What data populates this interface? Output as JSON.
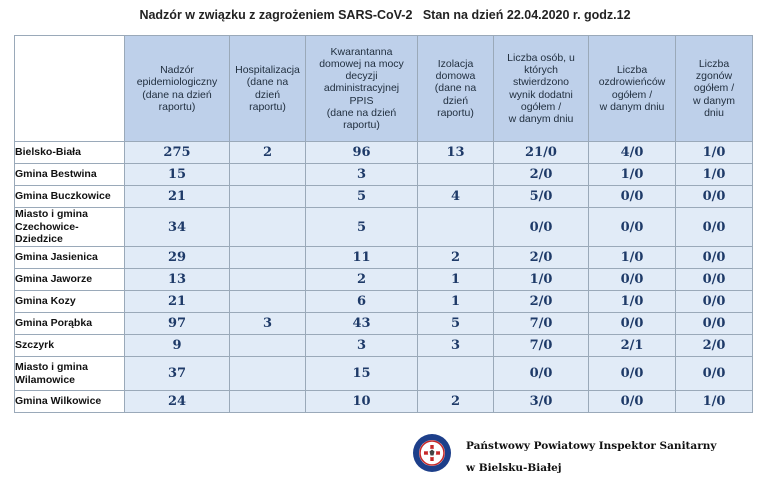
{
  "title": "Nadzór w związku z zagrożeniem SARS-CoV-2   Stan na dzień 22.04.2020 r. godz.12",
  "headers": [
    [
      "Nadzór",
      "epidemiologiczny",
      "(dane na dzień",
      "raportu)"
    ],
    [
      "Hospitalizacja",
      "(dane na",
      "dzień",
      "raportu)"
    ],
    [
      "Kwarantanna",
      "domowej na mocy",
      "decyzji",
      "administracyjnej",
      "PPIS",
      "(dane na dzień",
      "raportu)"
    ],
    [
      "Izolacja",
      "domowa",
      "(dane na",
      "dzień",
      "raportu)"
    ],
    [
      "Liczba osób, u",
      "których",
      "stwierdzono",
      "wynik dodatni",
      "ogółem /",
      "w danym dniu"
    ],
    [
      "Liczba",
      "ozdrowieńców",
      "ogółem /",
      "w danym dniu"
    ],
    [
      "Liczba",
      "zgonów",
      "ogółem /",
      "w danym",
      "dniu"
    ]
  ],
  "rows": [
    {
      "name": [
        "Bielsko-Biała"
      ],
      "values": [
        "275",
        "2",
        "96",
        "13",
        "21/0",
        "4/0",
        "1/0"
      ]
    },
    {
      "name": [
        "Gmina Bestwina"
      ],
      "values": [
        "15",
        "",
        "3",
        "",
        "2/0",
        "1/0",
        "1/0"
      ]
    },
    {
      "name": [
        "Gmina Buczkowice"
      ],
      "values": [
        "21",
        "",
        "5",
        "4",
        "5/0",
        "0/0",
        "0/0"
      ]
    },
    {
      "name": [
        "Miasto i gmina",
        "Czechowice-",
        "Dziedzice"
      ],
      "values": [
        "34",
        "",
        "5",
        "",
        "0/0",
        "0/0",
        "0/0"
      ]
    },
    {
      "name": [
        "Gmina Jasienica"
      ],
      "values": [
        "29",
        "",
        "11",
        "2",
        "2/0",
        "1/0",
        "0/0"
      ]
    },
    {
      "name": [
        "Gmina Jaworze"
      ],
      "values": [
        "13",
        "",
        "2",
        "1",
        "1/0",
        "0/0",
        "0/0"
      ]
    },
    {
      "name": [
        "Gmina Kozy"
      ],
      "values": [
        "21",
        "",
        "6",
        "1",
        "2/0",
        "1/0",
        "0/0"
      ]
    },
    {
      "name": [
        "Gmina Porąbka"
      ],
      "values": [
        "97",
        "3",
        "43",
        "5",
        "7/0",
        "0/0",
        "0/0"
      ]
    },
    {
      "name": [
        "Szczyrk"
      ],
      "values": [
        "9",
        "",
        "3",
        "3",
        "7/0",
        "2/1",
        "2/0"
      ]
    },
    {
      "name": [
        "Miasto i gmina",
        "Wilamowice"
      ],
      "values": [
        "37",
        "",
        "15",
        "",
        "0/0",
        "0/0",
        "0/0"
      ]
    },
    {
      "name": [
        "Gmina Wilkowice"
      ],
      "values": [
        "24",
        "",
        "10",
        "2",
        "3/0",
        "0/0",
        "1/0"
      ]
    }
  ],
  "footer": {
    "line1": "Państwowy Powiatowy Inspektor Sanitarny",
    "line2": "w Bielsku-Białej"
  },
  "colors": {
    "header_bg": "#bed0ea",
    "cell_bg": "#e1ebf7",
    "value_text": "#1e3a68",
    "grid_line": "#9aa9b9"
  }
}
